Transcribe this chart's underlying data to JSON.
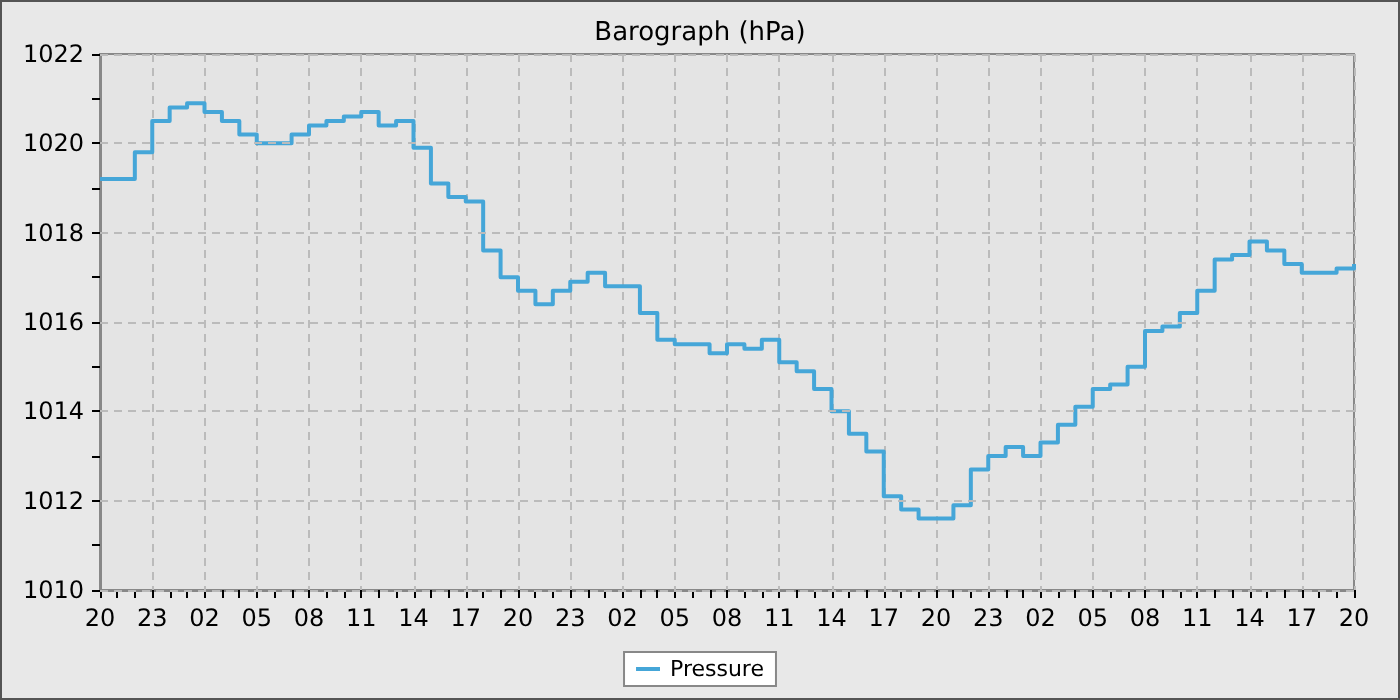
{
  "chart_data": {
    "type": "step",
    "title": "Barograph (hPa)",
    "categories": [
      "20",
      null,
      null,
      "23",
      null,
      null,
      "02",
      null,
      null,
      "05",
      null,
      null,
      "08",
      null,
      null,
      "11",
      null,
      null,
      "14",
      null,
      null,
      "17",
      null,
      null,
      "20",
      null,
      null,
      "23",
      null,
      null,
      "02",
      null,
      null,
      "05",
      null,
      null,
      "08",
      null,
      null,
      "11",
      null,
      null,
      "14",
      null,
      null,
      "17",
      null,
      null,
      "20",
      null,
      null,
      "23",
      null,
      null,
      "02",
      null,
      null,
      "05",
      null,
      null,
      "08",
      null,
      null,
      "11",
      null,
      null,
      "14",
      null,
      null,
      "17",
      null,
      null,
      "20"
    ],
    "series": [
      {
        "name": "Pressure",
        "color": "#45a6d8",
        "values": [
          1019.2,
          1019.2,
          1019.8,
          1020.5,
          1020.8,
          1020.9,
          1020.7,
          1020.5,
          1020.2,
          1020.0,
          1020.0,
          1020.2,
          1020.4,
          1020.5,
          1020.6,
          1020.7,
          1020.4,
          1020.5,
          1019.9,
          1019.1,
          1018.8,
          1018.7,
          1017.6,
          1017.0,
          1016.7,
          1016.4,
          1016.7,
          1016.9,
          1017.1,
          1016.8,
          1016.8,
          1016.2,
          1015.6,
          1015.5,
          1015.5,
          1015.3,
          1015.5,
          1015.4,
          1015.6,
          1015.1,
          1014.9,
          1014.5,
          1014.0,
          1013.5,
          1013.1,
          1012.1,
          1011.8,
          1011.6,
          1011.6,
          1011.9,
          1012.7,
          1013.0,
          1013.2,
          1013.0,
          1013.3,
          1013.7,
          1014.1,
          1014.5,
          1014.6,
          1015.0,
          1015.8,
          1015.9,
          1016.2,
          1016.7,
          1017.4,
          1017.5,
          1017.8,
          1017.6,
          1017.3,
          1017.1,
          1017.1,
          1017.2,
          1017.3
        ]
      }
    ],
    "ylim": [
      1010,
      1022
    ],
    "yticks": [
      1010,
      {
        "value": 1011,
        "label": null
      },
      1012,
      {
        "value": 1013,
        "label": null
      },
      1014,
      {
        "value": 1015,
        "label": null
      },
      1016,
      {
        "value": 1017,
        "label": null
      },
      1018,
      {
        "value": 1019,
        "label": null
      },
      1020,
      {
        "value": 1021,
        "label": null
      },
      1022
    ],
    "grid": true,
    "legend": "bottom",
    "marker": "none",
    "line_style": "solid"
  }
}
